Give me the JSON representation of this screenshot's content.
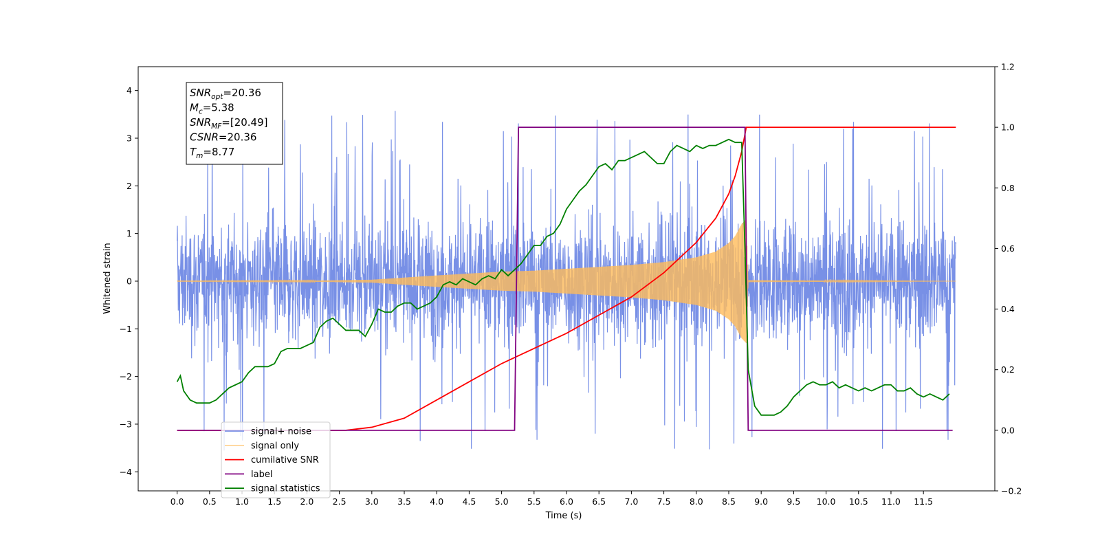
{
  "chart_data": {
    "type": "line",
    "xlabel": "Time (s)",
    "ylabel": "Whitened strain",
    "xlim": [
      -0.6,
      12.6
    ],
    "ylim": [
      -4.4,
      4.5
    ],
    "y2lim": [
      -0.2,
      1.2
    ],
    "x_ticks": [
      0.0,
      0.5,
      1.0,
      1.5,
      2.0,
      2.5,
      3.0,
      3.5,
      4.0,
      4.5,
      5.0,
      5.5,
      6.0,
      6.5,
      7.0,
      7.5,
      8.0,
      8.5,
      9.0,
      9.5,
      10.0,
      10.5,
      11.0,
      11.5
    ],
    "x_tick_labels": [
      "0.0",
      "0.5",
      "1.0",
      "1.5",
      "2.0",
      "2.5",
      "3.0",
      "3.5",
      "4.0",
      "4.5",
      "5.0",
      "5.5",
      "6.0",
      "6.5",
      "7.0",
      "7.5",
      "8.0",
      "8.5",
      "9.0",
      "9.5",
      "10.0",
      "10.5",
      "11.0",
      "11.5"
    ],
    "y_ticks": [
      -4,
      -3,
      -2,
      -1,
      0,
      1,
      2,
      3,
      4
    ],
    "y_tick_labels": [
      "−4",
      "−3",
      "−2",
      "−1",
      "0",
      "1",
      "2",
      "3",
      "4"
    ],
    "y2_ticks": [
      -0.2,
      0.0,
      0.2,
      0.4,
      0.6,
      0.8,
      1.0,
      1.2
    ],
    "y2_tick_labels": [
      "−0.2",
      "0.0",
      "0.2",
      "0.4",
      "0.6",
      "0.8",
      "1.0",
      "1.2"
    ],
    "grid": false,
    "legend_position": "bottom-left",
    "annotation": {
      "lines": [
        {
          "base": "SNR",
          "sub": "opt",
          "rest": "=20.36"
        },
        {
          "base": "M",
          "sub": "c",
          "rest": "=5.38"
        },
        {
          "base": "SNR",
          "sub": "MF",
          "rest": "=[20.49]"
        },
        {
          "base": "CSNR",
          "sub": "",
          "rest": "=20.36"
        },
        {
          "base": "T",
          "sub": "m",
          "rest": "=8.77"
        }
      ]
    },
    "noise": {
      "x_range": [
        0.0,
        12.0
      ],
      "typical_range": [
        -1.5,
        1.7
      ],
      "max_peak": 4.1,
      "min_peak": -3.9
    },
    "signal_envelope": {
      "x": [
        0.0,
        2.0,
        3.0,
        4.0,
        5.0,
        5.5,
        6.0,
        6.5,
        7.0,
        7.5,
        8.0,
        8.3,
        8.5,
        8.6,
        8.7,
        8.77,
        8.8,
        12.0
      ],
      "amplitude": [
        0.005,
        0.01,
        0.03,
        0.12,
        0.2,
        0.22,
        0.26,
        0.3,
        0.34,
        0.4,
        0.5,
        0.62,
        0.8,
        0.95,
        1.2,
        1.3,
        0.02,
        0.0
      ]
    },
    "series": [
      {
        "name": "signal+ noise",
        "color": "#7890e6",
        "axis": "left"
      },
      {
        "name": "signal only",
        "color": "#ffbc5a",
        "axis": "left"
      },
      {
        "name": "cumilative SNR",
        "color": "#ff0000",
        "axis": "right",
        "x": [
          0.0,
          2.6,
          3.0,
          3.5,
          4.0,
          4.5,
          5.0,
          5.5,
          6.0,
          6.5,
          7.0,
          7.5,
          8.0,
          8.3,
          8.5,
          8.6,
          8.7,
          8.77,
          12.0
        ],
        "values": [
          0.0,
          0.0,
          0.01,
          0.04,
          0.1,
          0.16,
          0.22,
          0.27,
          0.32,
          0.38,
          0.44,
          0.52,
          0.62,
          0.7,
          0.78,
          0.84,
          0.92,
          1.0,
          1.0
        ]
      },
      {
        "name": "label",
        "color": "#800080",
        "axis": "right",
        "x": [
          0.0,
          5.2,
          5.26,
          8.75,
          8.8,
          11.95
        ],
        "values": [
          0.0,
          0.0,
          1.0,
          1.0,
          0.0,
          0.0
        ]
      },
      {
        "name": "signal statistics",
        "color": "#008000",
        "axis": "right",
        "x": [
          0.0,
          0.05,
          0.1,
          0.2,
          0.3,
          0.4,
          0.5,
          0.6,
          0.7,
          0.8,
          0.9,
          1.0,
          1.1,
          1.2,
          1.3,
          1.4,
          1.5,
          1.6,
          1.7,
          1.8,
          1.9,
          2.0,
          2.1,
          2.2,
          2.3,
          2.4,
          2.5,
          2.6,
          2.7,
          2.8,
          2.9,
          3.0,
          3.1,
          3.2,
          3.3,
          3.4,
          3.5,
          3.6,
          3.7,
          3.8,
          3.9,
          4.0,
          4.1,
          4.2,
          4.3,
          4.4,
          4.5,
          4.6,
          4.7,
          4.8,
          4.9,
          5.0,
          5.1,
          5.2,
          5.3,
          5.4,
          5.5,
          5.6,
          5.7,
          5.8,
          5.9,
          6.0,
          6.1,
          6.2,
          6.3,
          6.4,
          6.5,
          6.6,
          6.7,
          6.8,
          6.9,
          7.0,
          7.1,
          7.2,
          7.3,
          7.4,
          7.5,
          7.6,
          7.7,
          7.8,
          7.9,
          8.0,
          8.1,
          8.2,
          8.3,
          8.4,
          8.5,
          8.6,
          8.7,
          8.75,
          8.8,
          8.9,
          9.0,
          9.1,
          9.2,
          9.3,
          9.4,
          9.5,
          9.6,
          9.7,
          9.8,
          9.9,
          10.0,
          10.1,
          10.2,
          10.3,
          10.4,
          10.5,
          10.6,
          10.7,
          10.8,
          10.9,
          11.0,
          11.1,
          11.2,
          11.3,
          11.4,
          11.5,
          11.6,
          11.7,
          11.8,
          11.9
        ],
        "values": [
          0.16,
          0.18,
          0.13,
          0.1,
          0.09,
          0.09,
          0.09,
          0.1,
          0.12,
          0.14,
          0.15,
          0.16,
          0.19,
          0.21,
          0.21,
          0.21,
          0.22,
          0.26,
          0.27,
          0.27,
          0.27,
          0.28,
          0.29,
          0.34,
          0.36,
          0.37,
          0.35,
          0.33,
          0.33,
          0.33,
          0.31,
          0.35,
          0.4,
          0.39,
          0.39,
          0.41,
          0.42,
          0.42,
          0.4,
          0.41,
          0.42,
          0.44,
          0.48,
          0.49,
          0.48,
          0.5,
          0.49,
          0.48,
          0.5,
          0.51,
          0.5,
          0.53,
          0.51,
          0.53,
          0.55,
          0.58,
          0.61,
          0.61,
          0.64,
          0.65,
          0.68,
          0.73,
          0.76,
          0.79,
          0.81,
          0.84,
          0.87,
          0.88,
          0.86,
          0.89,
          0.89,
          0.9,
          0.91,
          0.92,
          0.9,
          0.88,
          0.88,
          0.92,
          0.94,
          0.93,
          0.92,
          0.94,
          0.93,
          0.94,
          0.94,
          0.95,
          0.96,
          0.95,
          0.95,
          0.6,
          0.2,
          0.08,
          0.05,
          0.05,
          0.05,
          0.06,
          0.08,
          0.11,
          0.13,
          0.15,
          0.16,
          0.15,
          0.15,
          0.16,
          0.14,
          0.15,
          0.14,
          0.13,
          0.14,
          0.13,
          0.14,
          0.15,
          0.15,
          0.13,
          0.13,
          0.14,
          0.12,
          0.11,
          0.12,
          0.11,
          0.1,
          0.12
        ]
      }
    ]
  }
}
